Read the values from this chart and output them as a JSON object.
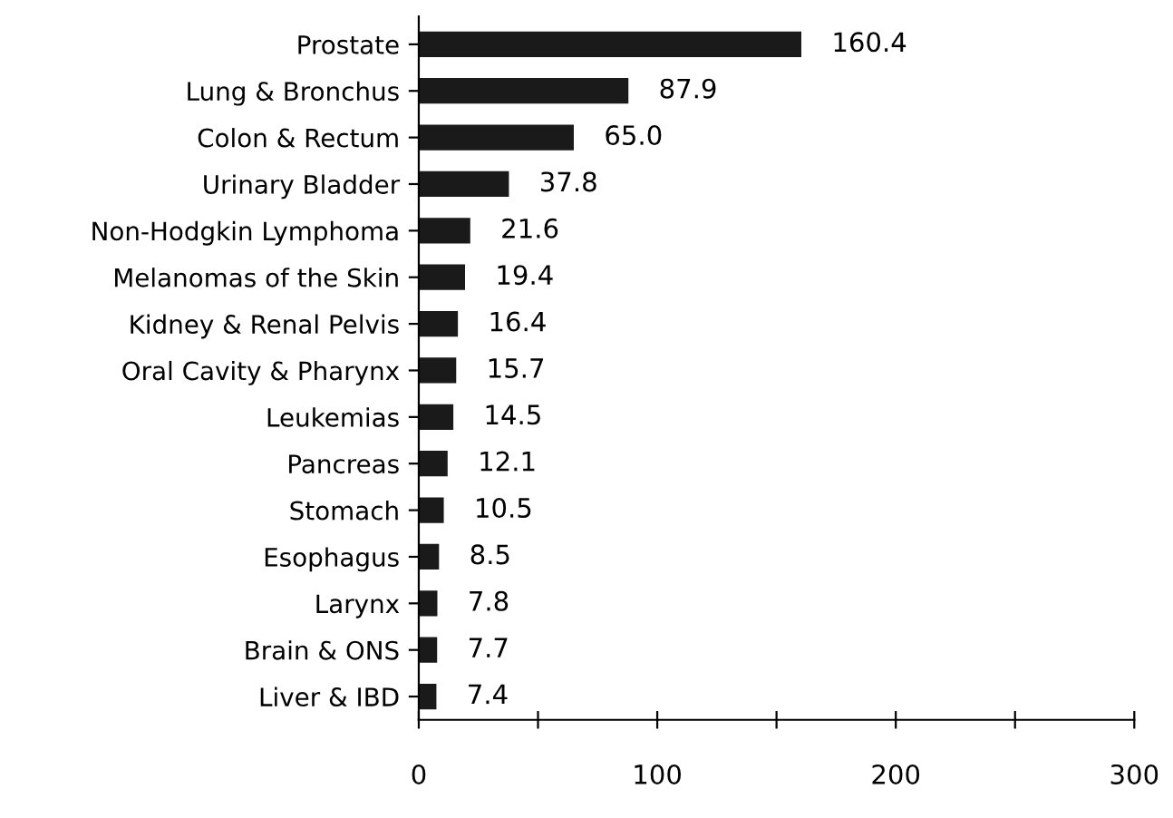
{
  "chart_data": {
    "type": "bar",
    "orientation": "horizontal",
    "categories": [
      "Prostate",
      "Lung & Bronchus",
      "Colon & Rectum",
      "Urinary Bladder",
      "Non-Hodgkin Lymphoma",
      "Melanomas of the Skin",
      "Kidney & Renal Pelvis",
      "Oral Cavity & Pharynx",
      "Leukemias",
      "Pancreas",
      "Stomach",
      "Esophagus",
      "Larynx",
      "Brain & ONS",
      "Liver & IBD"
    ],
    "values": [
      160.4,
      87.9,
      65.0,
      37.8,
      21.6,
      19.4,
      16.4,
      15.7,
      14.5,
      12.1,
      10.5,
      8.5,
      7.8,
      7.7,
      7.4
    ],
    "value_labels": [
      "160.4",
      "87.9",
      "65.0",
      "37.8",
      "21.6",
      "19.4",
      "16.4",
      "15.7",
      "14.5",
      "12.1",
      "10.5",
      "8.5",
      "7.8",
      "7.7",
      "7.4"
    ],
    "color": "#1a1a1a",
    "xlim": [
      0,
      300
    ],
    "xticks": [
      0,
      {
        "value": 50,
        "label": null
      },
      100,
      {
        "value": 150,
        "label": null
      },
      200,
      {
        "value": 250,
        "label": null
      },
      300
    ],
    "grid": false
  }
}
